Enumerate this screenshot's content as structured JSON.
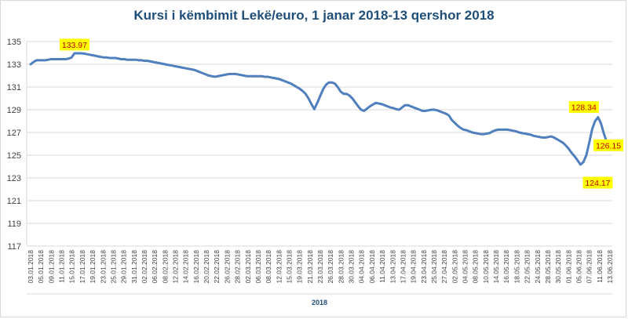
{
  "chart_data": {
    "type": "line",
    "title": "Kursi i këmbimit Lekë/euro, 1 janar 2018-13 qershor 2018",
    "x_group_label": "2018",
    "ylim": [
      117,
      135
    ],
    "yticks": [
      117,
      119,
      121,
      123,
      125,
      127,
      129,
      131,
      133,
      135
    ],
    "grid": true,
    "x_tick_labels": [
      "03.01.2018",
      "05.01.2018",
      "09.01.2018",
      "11.01.2018",
      "15.01.2018",
      "17.01.2018",
      "19.01.2018",
      "23.01.2018",
      "25.01.2018",
      "29.01.2018",
      "31.01.2018",
      "02.02.2018",
      "06.02.2018",
      "08.02.2018",
      "12.02.2018",
      "14.02.2018",
      "16.02.2018",
      "20.02.2018",
      "22.02.2018",
      "26.02.2018",
      "28.02.2018",
      "02.03.2018",
      "06.03.2018",
      "08.03.2018",
      "12.03.2018",
      "15.03.2018",
      "19.03.2018",
      "21.03.2018",
      "23.03.2018",
      "26.03.2018",
      "28.03.2018",
      "30.03.2018",
      "04.04.2018",
      "06.04.2018",
      "11.04.2018",
      "13.04.2018",
      "17.04.2018",
      "19.04.2018",
      "23.04.2018",
      "25.04.2018",
      "27.04.2018",
      "02.05.2018",
      "04.05.2018",
      "08.05.2018",
      "10.05.2018",
      "14.05.2018",
      "16.05.2018",
      "18.05.2018",
      "22.05.2018",
      "24.05.2018",
      "28.05.2018",
      "30.05.2018",
      "01.06.2018",
      "05.06.2018",
      "07.06.2018",
      "11.06.2018",
      "13.06.2018"
    ],
    "series": [
      {
        "color": "#4f7fbd",
        "values": [
          133.0,
          133.2,
          133.35,
          133.35,
          133.35,
          133.35,
          133.4,
          133.45,
          133.45,
          133.45,
          133.45,
          133.45,
          133.45,
          133.5,
          133.6,
          133.97,
          133.97,
          133.97,
          133.95,
          133.9,
          133.85,
          133.8,
          133.75,
          133.7,
          133.65,
          133.6,
          133.6,
          133.55,
          133.55,
          133.55,
          133.5,
          133.45,
          133.45,
          133.4,
          133.4,
          133.4,
          133.4,
          133.35,
          133.35,
          133.3,
          133.3,
          133.25,
          133.2,
          133.15,
          133.1,
          133.05,
          133.0,
          132.95,
          132.9,
          132.85,
          132.8,
          132.75,
          132.7,
          132.65,
          132.6,
          132.55,
          132.5,
          132.4,
          132.3,
          132.2,
          132.1,
          132.0,
          131.95,
          131.9,
          131.95,
          132.0,
          132.05,
          132.1,
          132.15,
          132.15,
          132.15,
          132.1,
          132.05,
          132.0,
          131.95,
          131.95,
          131.95,
          131.95,
          131.95,
          131.95,
          131.9,
          131.9,
          131.85,
          131.8,
          131.75,
          131.7,
          131.6,
          131.5,
          131.4,
          131.3,
          131.15,
          131.0,
          130.85,
          130.65,
          130.4,
          130.0,
          129.5,
          129.05,
          129.6,
          130.2,
          130.8,
          131.2,
          131.4,
          131.4,
          131.3,
          131.0,
          130.6,
          130.4,
          130.4,
          130.25,
          130.0,
          129.65,
          129.3,
          129.0,
          128.9,
          129.1,
          129.3,
          129.45,
          129.6,
          129.55,
          129.5,
          129.4,
          129.3,
          129.2,
          129.15,
          129.05,
          129.0,
          129.2,
          129.4,
          129.4,
          129.3,
          129.2,
          129.1,
          129.0,
          128.9,
          128.9,
          128.95,
          129.0,
          129.0,
          128.95,
          128.85,
          128.75,
          128.65,
          128.5,
          128.1,
          127.85,
          127.6,
          127.4,
          127.25,
          127.2,
          127.1,
          127.0,
          126.95,
          126.9,
          126.85,
          126.85,
          126.9,
          126.95,
          127.1,
          127.2,
          127.25,
          127.25,
          127.25,
          127.25,
          127.2,
          127.15,
          127.1,
          127.0,
          126.95,
          126.9,
          126.85,
          126.8,
          126.7,
          126.65,
          126.6,
          126.55,
          126.55,
          126.6,
          126.65,
          126.55,
          126.4,
          126.25,
          126.1,
          125.85,
          125.55,
          125.2,
          124.9,
          124.55,
          124.17,
          124.4,
          125.0,
          126.1,
          127.3,
          128.0,
          128.34,
          127.8,
          126.9,
          126.15
        ]
      }
    ],
    "annotations": [
      {
        "label": "133.97",
        "value": 133.97
      },
      {
        "label": "128.34",
        "value": 128.34
      },
      {
        "label": "124.17",
        "value": 124.17
      },
      {
        "label": "126.15",
        "value": 126.15
      }
    ]
  }
}
